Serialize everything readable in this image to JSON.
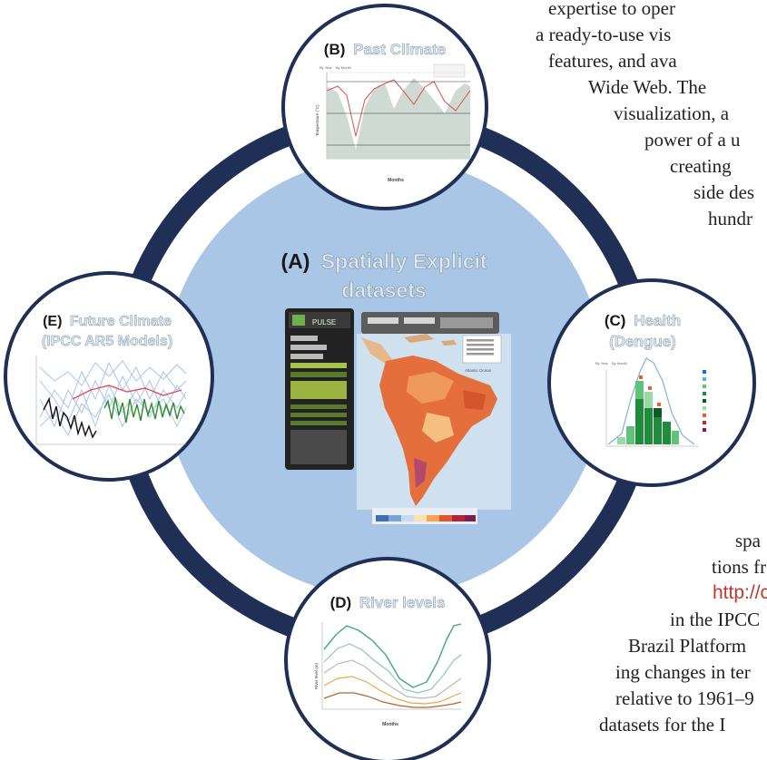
{
  "page_text": {
    "lines": [
      "expertise to oper",
      "a ready-to-use vis",
      "features, and ava",
      "Wide Web. The",
      "visualization, a",
      "power of a u",
      "creating",
      "side des",
      "hundr",
      "spa",
      "tions fr",
      "http://cm",
      "in the IPCC",
      "Brazil Platform",
      "ing changes in ter",
      "relative to 1961–9",
      "datasets for the I"
    ]
  },
  "diagram": {
    "center": {
      "letter": "(A)",
      "name_line1": "Spatially Explicit",
      "name_line2": "datasets"
    },
    "past_climate": {
      "letter": "(B)",
      "name": "Past Climate"
    },
    "health": {
      "letter": "(C)",
      "name_line1": "Health",
      "name_line2": "(Dengue)"
    },
    "river": {
      "letter": "(D)",
      "name": "River levels"
    },
    "future": {
      "letter": "(E)",
      "name_line1": "Future Climate",
      "name_line2": "(IPCC AR5 Models)"
    }
  },
  "colors": {
    "ring": "#1f2f55",
    "center_fill": "#a9c6e6",
    "highlight": "#dfe7ef",
    "link": "#c0392b"
  },
  "mini": {
    "by_year": "By Year",
    "by_month": "By Month",
    "months_label": "Months",
    "temp_label": "Temperature (°C)",
    "river_axis": "River level (m)",
    "pulse": "PULSE",
    "ocean": "Atlantic Ocean"
  }
}
